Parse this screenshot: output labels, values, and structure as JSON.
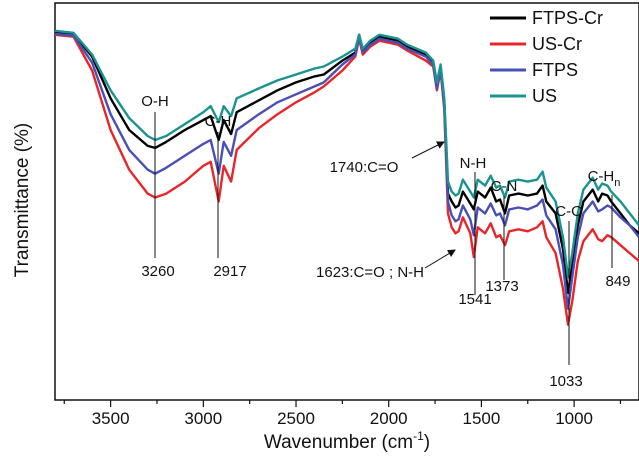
{
  "chart_data": {
    "type": "line",
    "xlabel": "Wavenumber (cm",
    "xlabel_sup": "-1",
    "xlabel_close": ")",
    "ylabel": "Transmittance (%)",
    "xlim": [
      3800,
      650
    ],
    "x_reversed": true,
    "ylim": [
      0,
      1
    ],
    "y_ticks_labeled": false,
    "x_ticks": [
      3500,
      3000,
      2500,
      2000,
      1500,
      1000
    ],
    "x_tick_labels": [
      "3500",
      "3000",
      "2500",
      "2000",
      "1500",
      "1000"
    ],
    "legend_position": "top-right",
    "series": [
      {
        "name": "FTPS-Cr",
        "color": "#000000",
        "points": [
          [
            3800,
            0.925
          ],
          [
            3700,
            0.922
          ],
          [
            3600,
            0.865
          ],
          [
            3500,
            0.76
          ],
          [
            3400,
            0.68
          ],
          [
            3300,
            0.64
          ],
          [
            3260,
            0.635
          ],
          [
            3200,
            0.65
          ],
          [
            3100,
            0.68
          ],
          [
            3000,
            0.705
          ],
          [
            2960,
            0.715
          ],
          [
            2917,
            0.655
          ],
          [
            2890,
            0.705
          ],
          [
            2850,
            0.67
          ],
          [
            2820,
            0.725
          ],
          [
            2700,
            0.755
          ],
          [
            2600,
            0.78
          ],
          [
            2500,
            0.8
          ],
          [
            2400,
            0.815
          ],
          [
            2350,
            0.82
          ],
          [
            2250,
            0.855
          ],
          [
            2180,
            0.875
          ],
          [
            2160,
            0.92
          ],
          [
            2140,
            0.88
          ],
          [
            2100,
            0.9
          ],
          [
            2050,
            0.915
          ],
          [
            2000,
            0.91
          ],
          [
            1950,
            0.905
          ],
          [
            1900,
            0.89
          ],
          [
            1800,
            0.87
          ],
          [
            1760,
            0.85
          ],
          [
            1740,
            0.79
          ],
          [
            1720,
            0.84
          ],
          [
            1700,
            0.75
          ],
          [
            1680,
            0.52
          ],
          [
            1660,
            0.5
          ],
          [
            1640,
            0.485
          ],
          [
            1623,
            0.49
          ],
          [
            1600,
            0.525
          ],
          [
            1560,
            0.495
          ],
          [
            1541,
            0.48
          ],
          [
            1520,
            0.525
          ],
          [
            1480,
            0.51
          ],
          [
            1450,
            0.535
          ],
          [
            1420,
            0.5
          ],
          [
            1400,
            0.505
          ],
          [
            1373,
            0.47
          ],
          [
            1350,
            0.515
          ],
          [
            1300,
            0.52
          ],
          [
            1250,
            0.515
          ],
          [
            1200,
            0.52
          ],
          [
            1170,
            0.54
          ],
          [
            1150,
            0.5
          ],
          [
            1100,
            0.47
          ],
          [
            1060,
            0.38
          ],
          [
            1033,
            0.27
          ],
          [
            1010,
            0.34
          ],
          [
            980,
            0.44
          ],
          [
            950,
            0.5
          ],
          [
            900,
            0.53
          ],
          [
            870,
            0.5
          ],
          [
            849,
            0.52
          ],
          [
            820,
            0.515
          ],
          [
            800,
            0.5
          ],
          [
            750,
            0.47
          ],
          [
            700,
            0.44
          ],
          [
            650,
            0.42
          ]
        ]
      },
      {
        "name": "US-Cr",
        "color": "#e8262a",
        "points": [
          [
            3800,
            0.92
          ],
          [
            3700,
            0.915
          ],
          [
            3600,
            0.83
          ],
          [
            3500,
            0.68
          ],
          [
            3400,
            0.58
          ],
          [
            3300,
            0.52
          ],
          [
            3260,
            0.51
          ],
          [
            3200,
            0.52
          ],
          [
            3100,
            0.55
          ],
          [
            3000,
            0.59
          ],
          [
            2960,
            0.6
          ],
          [
            2917,
            0.5
          ],
          [
            2890,
            0.59
          ],
          [
            2850,
            0.55
          ],
          [
            2820,
            0.63
          ],
          [
            2700,
            0.685
          ],
          [
            2600,
            0.72
          ],
          [
            2500,
            0.75
          ],
          [
            2400,
            0.775
          ],
          [
            2350,
            0.79
          ],
          [
            2250,
            0.83
          ],
          [
            2180,
            0.865
          ],
          [
            2160,
            0.91
          ],
          [
            2140,
            0.87
          ],
          [
            2100,
            0.89
          ],
          [
            2050,
            0.905
          ],
          [
            2000,
            0.9
          ],
          [
            1950,
            0.895
          ],
          [
            1900,
            0.88
          ],
          [
            1800,
            0.855
          ],
          [
            1760,
            0.84
          ],
          [
            1740,
            0.78
          ],
          [
            1720,
            0.83
          ],
          [
            1700,
            0.73
          ],
          [
            1680,
            0.47
          ],
          [
            1660,
            0.435
          ],
          [
            1640,
            0.42
          ],
          [
            1623,
            0.425
          ],
          [
            1600,
            0.46
          ],
          [
            1560,
            0.42
          ],
          [
            1541,
            0.36
          ],
          [
            1520,
            0.435
          ],
          [
            1480,
            0.42
          ],
          [
            1450,
            0.445
          ],
          [
            1420,
            0.41
          ],
          [
            1400,
            0.415
          ],
          [
            1373,
            0.39
          ],
          [
            1350,
            0.425
          ],
          [
            1300,
            0.43
          ],
          [
            1250,
            0.425
          ],
          [
            1200,
            0.435
          ],
          [
            1170,
            0.45
          ],
          [
            1150,
            0.41
          ],
          [
            1100,
            0.37
          ],
          [
            1060,
            0.28
          ],
          [
            1033,
            0.19
          ],
          [
            1010,
            0.25
          ],
          [
            980,
            0.35
          ],
          [
            950,
            0.4
          ],
          [
            900,
            0.43
          ],
          [
            870,
            0.405
          ],
          [
            849,
            0.4
          ],
          [
            820,
            0.415
          ],
          [
            800,
            0.41
          ],
          [
            750,
            0.39
          ],
          [
            700,
            0.37
          ],
          [
            650,
            0.35
          ]
        ]
      },
      {
        "name": "FTPS",
        "color": "#4a4fb5",
        "points": [
          [
            3800,
            0.922
          ],
          [
            3700,
            0.918
          ],
          [
            3600,
            0.85
          ],
          [
            3500,
            0.72
          ],
          [
            3400,
            0.63
          ],
          [
            3300,
            0.58
          ],
          [
            3260,
            0.57
          ],
          [
            3200,
            0.585
          ],
          [
            3100,
            0.615
          ],
          [
            3000,
            0.645
          ],
          [
            2960,
            0.655
          ],
          [
            2917,
            0.57
          ],
          [
            2890,
            0.65
          ],
          [
            2850,
            0.615
          ],
          [
            2820,
            0.68
          ],
          [
            2700,
            0.72
          ],
          [
            2600,
            0.75
          ],
          [
            2500,
            0.77
          ],
          [
            2400,
            0.79
          ],
          [
            2350,
            0.8
          ],
          [
            2250,
            0.845
          ],
          [
            2180,
            0.87
          ],
          [
            2160,
            0.915
          ],
          [
            2140,
            0.875
          ],
          [
            2100,
            0.895
          ],
          [
            2050,
            0.91
          ],
          [
            2000,
            0.905
          ],
          [
            1950,
            0.9
          ],
          [
            1900,
            0.885
          ],
          [
            1800,
            0.865
          ],
          [
            1760,
            0.845
          ],
          [
            1740,
            0.785
          ],
          [
            1720,
            0.835
          ],
          [
            1700,
            0.74
          ],
          [
            1680,
            0.5
          ],
          [
            1660,
            0.465
          ],
          [
            1640,
            0.45
          ],
          [
            1623,
            0.455
          ],
          [
            1600,
            0.49
          ],
          [
            1560,
            0.455
          ],
          [
            1541,
            0.415
          ],
          [
            1520,
            0.485
          ],
          [
            1480,
            0.47
          ],
          [
            1450,
            0.495
          ],
          [
            1420,
            0.465
          ],
          [
            1400,
            0.47
          ],
          [
            1373,
            0.44
          ],
          [
            1350,
            0.48
          ],
          [
            1300,
            0.485
          ],
          [
            1250,
            0.48
          ],
          [
            1200,
            0.49
          ],
          [
            1170,
            0.505
          ],
          [
            1150,
            0.465
          ],
          [
            1100,
            0.43
          ],
          [
            1060,
            0.34
          ],
          [
            1033,
            0.23
          ],
          [
            1010,
            0.31
          ],
          [
            980,
            0.41
          ],
          [
            950,
            0.47
          ],
          [
            900,
            0.5
          ],
          [
            870,
            0.475
          ],
          [
            849,
            0.48
          ],
          [
            820,
            0.49
          ],
          [
            800,
            0.485
          ],
          [
            750,
            0.46
          ],
          [
            700,
            0.44
          ],
          [
            650,
            0.41
          ]
        ]
      },
      {
        "name": "US",
        "color": "#1a9490",
        "points": [
          [
            3800,
            0.93
          ],
          [
            3700,
            0.925
          ],
          [
            3600,
            0.87
          ],
          [
            3500,
            0.78
          ],
          [
            3400,
            0.71
          ],
          [
            3300,
            0.665
          ],
          [
            3260,
            0.655
          ],
          [
            3200,
            0.665
          ],
          [
            3100,
            0.695
          ],
          [
            3000,
            0.725
          ],
          [
            2960,
            0.74
          ],
          [
            2917,
            0.7
          ],
          [
            2890,
            0.74
          ],
          [
            2850,
            0.715
          ],
          [
            2820,
            0.76
          ],
          [
            2700,
            0.785
          ],
          [
            2600,
            0.805
          ],
          [
            2500,
            0.82
          ],
          [
            2400,
            0.835
          ],
          [
            2350,
            0.84
          ],
          [
            2250,
            0.865
          ],
          [
            2180,
            0.885
          ],
          [
            2160,
            0.92
          ],
          [
            2140,
            0.885
          ],
          [
            2100,
            0.905
          ],
          [
            2050,
            0.92
          ],
          [
            2000,
            0.915
          ],
          [
            1950,
            0.91
          ],
          [
            1900,
            0.895
          ],
          [
            1800,
            0.875
          ],
          [
            1760,
            0.855
          ],
          [
            1740,
            0.8
          ],
          [
            1720,
            0.845
          ],
          [
            1700,
            0.76
          ],
          [
            1680,
            0.55
          ],
          [
            1660,
            0.525
          ],
          [
            1640,
            0.515
          ],
          [
            1623,
            0.52
          ],
          [
            1600,
            0.555
          ],
          [
            1560,
            0.525
          ],
          [
            1541,
            0.51
          ],
          [
            1520,
            0.555
          ],
          [
            1480,
            0.54
          ],
          [
            1450,
            0.565
          ],
          [
            1420,
            0.535
          ],
          [
            1400,
            0.54
          ],
          [
            1373,
            0.51
          ],
          [
            1350,
            0.55
          ],
          [
            1300,
            0.555
          ],
          [
            1250,
            0.55
          ],
          [
            1200,
            0.555
          ],
          [
            1170,
            0.575
          ],
          [
            1150,
            0.535
          ],
          [
            1100,
            0.5
          ],
          [
            1060,
            0.41
          ],
          [
            1033,
            0.31
          ],
          [
            1010,
            0.37
          ],
          [
            980,
            0.47
          ],
          [
            950,
            0.53
          ],
          [
            900,
            0.56
          ],
          [
            870,
            0.53
          ],
          [
            849,
            0.545
          ],
          [
            820,
            0.54
          ],
          [
            800,
            0.525
          ],
          [
            750,
            0.5
          ],
          [
            700,
            0.47
          ],
          [
            650,
            0.44
          ]
        ]
      }
    ],
    "annotations": {
      "oh": {
        "label": "O-H",
        "x": 3260
      },
      "ch": {
        "label": "C-H",
        "x": 2917
      },
      "nh": {
        "label": "N-H",
        "x": 1541
      },
      "cn": {
        "label": "C-N",
        "x": 1373
      },
      "co": {
        "label": "C-O",
        "x": 1033
      },
      "chn_base": {
        "label": "C-H",
        "x": 849
      },
      "chn_sub": {
        "label": "n"
      },
      "n3260": {
        "label": "3260"
      },
      "n2917": {
        "label": "2917"
      },
      "n1541": {
        "label": "1541"
      },
      "n1373": {
        "label": "1373"
      },
      "n1033": {
        "label": "1033"
      },
      "n849": {
        "label": "849"
      },
      "a1740": {
        "label": "1740:C=O",
        "x": 1740
      },
      "a1623": {
        "label": "1623:C=O ; N-H",
        "x": 1623
      }
    }
  }
}
